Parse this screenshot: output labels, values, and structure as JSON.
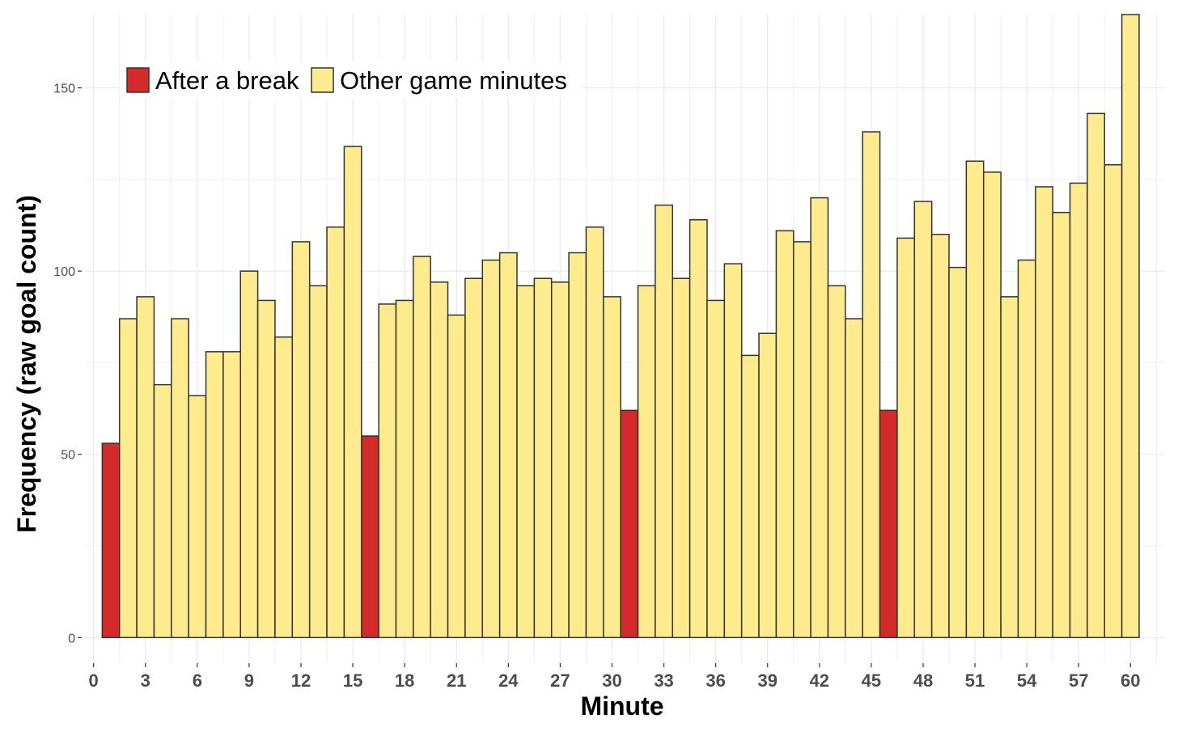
{
  "chart_data": {
    "type": "bar",
    "xlabel": "Minute",
    "ylabel": "Frequency (raw goal count)",
    "xlim": [
      -0.5,
      62
    ],
    "ylim": [
      -7,
      170
    ],
    "x_ticks": [
      0,
      3,
      6,
      9,
      12,
      15,
      18,
      21,
      24,
      27,
      30,
      33,
      36,
      39,
      42,
      45,
      48,
      51,
      54,
      57,
      60
    ],
    "y_ticks": [
      0,
      50,
      100,
      150
    ],
    "grid": true,
    "legend_position": "top-left",
    "colors": {
      "after_break": "#d42a2a",
      "other": "#fdeb8e",
      "outline": "#333333",
      "grid": "#ebebeb"
    },
    "legend": [
      {
        "label": "After a break",
        "key": "after_break"
      },
      {
        "label": "Other game minutes",
        "key": "other"
      }
    ],
    "x": [
      1,
      2,
      3,
      4,
      5,
      6,
      7,
      8,
      9,
      10,
      11,
      12,
      13,
      14,
      15,
      16,
      17,
      18,
      19,
      20,
      21,
      22,
      23,
      24,
      25,
      26,
      27,
      28,
      29,
      30,
      31,
      32,
      33,
      34,
      35,
      36,
      37,
      38,
      39,
      40,
      41,
      42,
      43,
      44,
      45,
      46,
      47,
      48,
      49,
      50,
      51,
      52,
      53,
      54,
      55,
      56,
      57,
      58,
      59,
      60
    ],
    "values": [
      53,
      87,
      93,
      69,
      87,
      66,
      78,
      78,
      100,
      92,
      82,
      108,
      96,
      112,
      134,
      55,
      91,
      92,
      104,
      97,
      88,
      98,
      103,
      105,
      96,
      98,
      97,
      105,
      112,
      93,
      62,
      96,
      118,
      98,
      114,
      92,
      102,
      77,
      83,
      111,
      108,
      120,
      96,
      87,
      138,
      62,
      109,
      119,
      110,
      101,
      130,
      127,
      93,
      103,
      123,
      116,
      124,
      143,
      129,
      170
    ],
    "groups": [
      "after_break",
      "other",
      "other",
      "other",
      "other",
      "other",
      "other",
      "other",
      "other",
      "other",
      "other",
      "other",
      "other",
      "other",
      "other",
      "after_break",
      "other",
      "other",
      "other",
      "other",
      "other",
      "other",
      "other",
      "other",
      "other",
      "other",
      "other",
      "other",
      "other",
      "other",
      "after_break",
      "other",
      "other",
      "other",
      "other",
      "other",
      "other",
      "other",
      "other",
      "other",
      "other",
      "other",
      "other",
      "other",
      "other",
      "after_break",
      "other",
      "other",
      "other",
      "other",
      "other",
      "other",
      "other",
      "other",
      "other",
      "other",
      "other",
      "other",
      "other",
      "other"
    ]
  }
}
